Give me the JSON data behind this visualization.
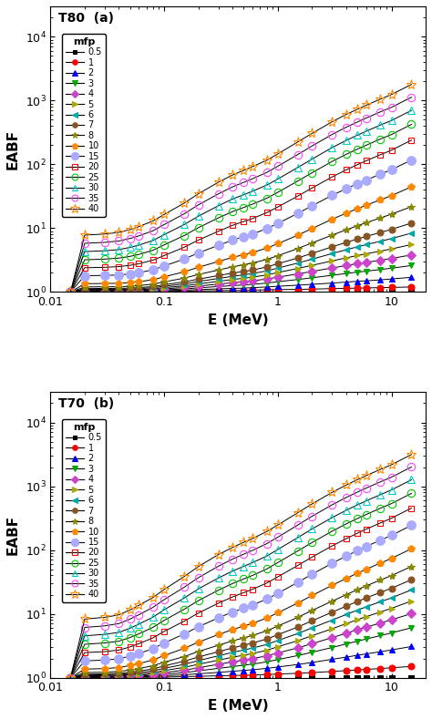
{
  "panels": [
    {
      "label": "T80",
      "panel_letter": "(a)"
    },
    {
      "label": "T70",
      "panel_letter": "(b)"
    }
  ],
  "xlabel": "E (MeV)",
  "ylabel": "EABF",
  "xlim": [
    0.01,
    20
  ],
  "ylim": [
    1,
    30000
  ],
  "x_energies": [
    0.015,
    0.02,
    0.03,
    0.04,
    0.05,
    0.06,
    0.08,
    0.1,
    0.15,
    0.2,
    0.3,
    0.4,
    0.5,
    0.6,
    0.8,
    1.0,
    1.5,
    2.0,
    3.0,
    4.0,
    5.0,
    6.0,
    8.0,
    10.0,
    15.0
  ],
  "series": [
    {
      "mfp": "0.5",
      "color": "#000000",
      "marker": "s",
      "markersize": 4,
      "markerfill": "full"
    },
    {
      "mfp": "1",
      "color": "#ff0000",
      "marker": "o",
      "markersize": 5,
      "markerfill": "full"
    },
    {
      "mfp": "2",
      "color": "#0000ff",
      "marker": "^",
      "markersize": 5,
      "markerfill": "full"
    },
    {
      "mfp": "3",
      "color": "#00aa00",
      "marker": "v",
      "markersize": 5,
      "markerfill": "full"
    },
    {
      "mfp": "4",
      "color": "#cc44cc",
      "marker": "D",
      "markersize": 5,
      "markerfill": "full"
    },
    {
      "mfp": "5",
      "color": "#aaaa00",
      "marker": ">",
      "markersize": 5,
      "markerfill": "full"
    },
    {
      "mfp": "6",
      "color": "#00aaaa",
      "marker": "<",
      "markersize": 5,
      "markerfill": "full"
    },
    {
      "mfp": "7",
      "color": "#885522",
      "marker": "o",
      "markersize": 5,
      "markerfill": "full"
    },
    {
      "mfp": "8",
      "color": "#888800",
      "marker": "*",
      "markersize": 6,
      "markerfill": "full"
    },
    {
      "mfp": "10",
      "color": "#ff8800",
      "marker": "p",
      "markersize": 6,
      "markerfill": "full"
    },
    {
      "mfp": "15",
      "color": "#aaaaff",
      "marker": "o",
      "markersize": 7,
      "markerfill": "full"
    },
    {
      "mfp": "20",
      "color": "#ff0000",
      "marker": "s",
      "markersize": 5,
      "markerfill": "none"
    },
    {
      "mfp": "25",
      "color": "#00cc00",
      "marker": "o",
      "markersize": 6,
      "markerfill": "none"
    },
    {
      "mfp": "30",
      "color": "#00cccc",
      "marker": "^",
      "markersize": 6,
      "markerfill": "none"
    },
    {
      "mfp": "35",
      "color": "#ff44ff",
      "marker": "o",
      "markersize": 6,
      "markerfill": "none"
    },
    {
      "mfp": "40",
      "color": "#ff8800",
      "marker": "*",
      "markersize": 8,
      "markerfill": "none"
    }
  ],
  "T80_data": [
    [
      1.0,
      1.0,
      1.0,
      1.0,
      1.0,
      1.0,
      1.0,
      1.0,
      1.0,
      1.0,
      1.0,
      1.0,
      1.0,
      1.0,
      1.0,
      1.0,
      1.0,
      1.0,
      1.0,
      1.0,
      1.0,
      1.0,
      1.0,
      1.0,
      1.0
    ],
    [
      1.0,
      1.01,
      1.01,
      1.01,
      1.01,
      1.01,
      1.01,
      1.02,
      1.03,
      1.04,
      1.05,
      1.06,
      1.06,
      1.07,
      1.08,
      1.09,
      1.1,
      1.11,
      1.13,
      1.14,
      1.15,
      1.16,
      1.17,
      1.18,
      1.2
    ],
    [
      1.0,
      1.02,
      1.02,
      1.02,
      1.02,
      1.02,
      1.03,
      1.05,
      1.07,
      1.09,
      1.12,
      1.14,
      1.15,
      1.17,
      1.2,
      1.23,
      1.28,
      1.32,
      1.38,
      1.43,
      1.47,
      1.5,
      1.55,
      1.6,
      1.7
    ],
    [
      1.0,
      1.03,
      1.03,
      1.03,
      1.03,
      1.04,
      1.05,
      1.08,
      1.12,
      1.16,
      1.22,
      1.26,
      1.29,
      1.32,
      1.38,
      1.45,
      1.57,
      1.67,
      1.83,
      1.95,
      2.05,
      2.12,
      2.25,
      2.36,
      2.6
    ],
    [
      1.0,
      1.05,
      1.05,
      1.05,
      1.05,
      1.06,
      1.08,
      1.12,
      1.18,
      1.24,
      1.33,
      1.4,
      1.45,
      1.5,
      1.6,
      1.71,
      1.92,
      2.1,
      2.38,
      2.6,
      2.78,
      2.92,
      3.15,
      3.35,
      3.82
    ],
    [
      1.0,
      1.07,
      1.07,
      1.07,
      1.08,
      1.09,
      1.12,
      1.17,
      1.25,
      1.34,
      1.47,
      1.57,
      1.64,
      1.71,
      1.85,
      2.02,
      2.34,
      2.62,
      3.07,
      3.43,
      3.73,
      3.97,
      4.38,
      4.73,
      5.55
    ],
    [
      1.0,
      1.1,
      1.1,
      1.1,
      1.11,
      1.13,
      1.17,
      1.23,
      1.34,
      1.46,
      1.63,
      1.76,
      1.86,
      1.95,
      2.14,
      2.37,
      2.84,
      3.27,
      4.0,
      4.59,
      5.1,
      5.53,
      6.24,
      6.88,
      8.37
    ],
    [
      1.0,
      1.13,
      1.14,
      1.14,
      1.15,
      1.17,
      1.22,
      1.3,
      1.44,
      1.59,
      1.81,
      1.98,
      2.1,
      2.21,
      2.47,
      2.77,
      3.42,
      4.03,
      5.1,
      5.99,
      6.76,
      7.44,
      8.57,
      9.61,
      12.0
    ],
    [
      1.0,
      1.2,
      1.21,
      1.21,
      1.23,
      1.26,
      1.33,
      1.44,
      1.65,
      1.88,
      2.21,
      2.48,
      2.67,
      2.85,
      3.24,
      3.71,
      4.8,
      5.87,
      7.79,
      9.44,
      10.9,
      12.2,
      14.5,
      16.6,
      21.8
    ],
    [
      1.0,
      1.35,
      1.36,
      1.37,
      1.4,
      1.45,
      1.56,
      1.73,
      2.07,
      2.44,
      3.01,
      3.49,
      3.84,
      4.17,
      4.88,
      5.72,
      7.78,
      9.88,
      13.8,
      17.2,
      20.2,
      22.9,
      27.9,
      32.4,
      44.6
    ],
    [
      1.0,
      1.8,
      1.82,
      1.85,
      1.92,
      2.01,
      2.23,
      2.56,
      3.28,
      4.1,
      5.38,
      6.51,
      7.34,
      8.12,
      9.84,
      11.9,
      17.1,
      22.4,
      32.7,
      41.7,
      49.7,
      56.9,
      70.5,
      82.7,
      117
    ],
    [
      1.0,
      2.4,
      2.44,
      2.5,
      2.62,
      2.78,
      3.16,
      3.73,
      5.02,
      6.51,
      8.95,
      11.1,
      12.7,
      14.2,
      17.5,
      21.5,
      31.9,
      42.6,
      63.5,
      82.2,
      98.7,
      114,
      142,
      167,
      240
    ],
    [
      1.0,
      3.2,
      3.28,
      3.4,
      3.62,
      3.88,
      4.52,
      5.48,
      7.66,
      10.2,
      14.5,
      18.2,
      21.1,
      23.8,
      29.5,
      36.5,
      54.9,
      73.9,
      111,
      144,
      173,
      200,
      250,
      294,
      424
    ],
    [
      1.0,
      4.3,
      4.43,
      4.62,
      5.0,
      5.43,
      6.44,
      7.92,
      11.4,
      15.4,
      22.5,
      28.7,
      33.4,
      38.0,
      47.4,
      59.0,
      89.5,
      121,
      183,
      238,
      286,
      331,
      414,
      487,
      702
    ],
    [
      1.0,
      5.8,
      6.0,
      6.3,
      6.9,
      7.58,
      9.14,
      11.4,
      16.8,
      23.2,
      34.5,
      44.5,
      52.2,
      59.7,
      74.8,
      93.5,
      143,
      194,
      294,
      383,
      460,
      533,
      666,
      784,
      1130
    ],
    [
      1.0,
      7.8,
      8.1,
      8.6,
      9.5,
      10.6,
      13.0,
      16.4,
      24.7,
      34.6,
      52.5,
      68.2,
      80.6,
      92.5,
      116,
      146,
      225,
      306,
      465,
      607,
      730,
      845,
      1056,
      1243,
      1793
    ]
  ],
  "T70_data": [
    [
      1.0,
      1.0,
      1.0,
      1.0,
      1.0,
      1.0,
      1.0,
      1.0,
      1.0,
      1.0,
      1.0,
      1.0,
      1.0,
      1.0,
      1.0,
      1.0,
      1.0,
      1.0,
      1.0,
      1.0,
      1.0,
      1.0,
      1.0,
      1.0,
      1.0
    ],
    [
      1.0,
      1.01,
      1.01,
      1.01,
      1.01,
      1.01,
      1.02,
      1.02,
      1.04,
      1.05,
      1.07,
      1.08,
      1.09,
      1.1,
      1.12,
      1.14,
      1.17,
      1.2,
      1.25,
      1.29,
      1.32,
      1.35,
      1.39,
      1.43,
      1.5
    ],
    [
      1.0,
      1.02,
      1.02,
      1.03,
      1.03,
      1.03,
      1.05,
      1.07,
      1.11,
      1.15,
      1.21,
      1.26,
      1.3,
      1.33,
      1.4,
      1.47,
      1.61,
      1.73,
      1.94,
      2.1,
      2.24,
      2.36,
      2.55,
      2.72,
      3.08
    ],
    [
      1.0,
      1.03,
      1.04,
      1.04,
      1.05,
      1.06,
      1.09,
      1.13,
      1.2,
      1.28,
      1.4,
      1.49,
      1.57,
      1.63,
      1.77,
      1.92,
      2.22,
      2.5,
      2.97,
      3.38,
      3.73,
      4.04,
      4.56,
      5.03,
      6.05
    ],
    [
      1.0,
      1.05,
      1.06,
      1.06,
      1.08,
      1.09,
      1.14,
      1.2,
      1.31,
      1.43,
      1.62,
      1.77,
      1.89,
      1.99,
      2.2,
      2.44,
      2.93,
      3.41,
      4.24,
      4.97,
      5.62,
      6.2,
      7.18,
      8.07,
      10.1
    ],
    [
      1.0,
      1.07,
      1.08,
      1.09,
      1.12,
      1.14,
      1.2,
      1.29,
      1.45,
      1.62,
      1.88,
      2.09,
      2.25,
      2.39,
      2.69,
      3.05,
      3.8,
      4.54,
      5.84,
      7.02,
      8.08,
      9.05,
      10.7,
      12.2,
      15.9
    ],
    [
      1.0,
      1.1,
      1.11,
      1.13,
      1.16,
      1.2,
      1.28,
      1.4,
      1.62,
      1.85,
      2.2,
      2.49,
      2.71,
      2.91,
      3.32,
      3.82,
      4.92,
      6.03,
      7.97,
      9.78,
      11.4,
      12.9,
      15.5,
      17.8,
      23.8
    ],
    [
      1.0,
      1.13,
      1.15,
      1.17,
      1.22,
      1.27,
      1.37,
      1.53,
      1.81,
      2.11,
      2.55,
      2.93,
      3.22,
      3.49,
      4.03,
      4.71,
      6.22,
      7.78,
      10.6,
      13.2,
      15.6,
      17.8,
      21.7,
      25.2,
      34.3
    ],
    [
      1.0,
      1.2,
      1.22,
      1.25,
      1.32,
      1.39,
      1.54,
      1.75,
      2.14,
      2.57,
      3.22,
      3.77,
      4.2,
      4.6,
      5.42,
      6.44,
      8.82,
      11.3,
      15.8,
      20.0,
      23.9,
      27.5,
      33.9,
      39.8,
      55.4
    ],
    [
      1.0,
      1.36,
      1.39,
      1.44,
      1.55,
      1.66,
      1.9,
      2.22,
      2.88,
      3.6,
      4.74,
      5.68,
      6.43,
      7.12,
      8.58,
      10.4,
      14.8,
      19.4,
      28.0,
      35.9,
      43.3,
      50.1,
      62.5,
      73.9,
      105
    ],
    [
      1.0,
      1.83,
      1.89,
      1.97,
      2.17,
      2.39,
      2.86,
      3.5,
      4.83,
      6.27,
      8.66,
      10.7,
      12.3,
      13.8,
      17.0,
      21.0,
      31.2,
      41.8,
      62.0,
      80.6,
      97.8,
      114,
      143,
      170,
      244
    ],
    [
      1.0,
      2.47,
      2.56,
      2.71,
      3.03,
      3.41,
      4.22,
      5.31,
      7.67,
      10.3,
      14.7,
      18.4,
      21.5,
      24.3,
      30.4,
      38.0,
      57.4,
      77.6,
      116,
      151,
      183,
      213,
      266,
      315,
      455
    ],
    [
      1.0,
      3.34,
      3.5,
      3.73,
      4.25,
      4.87,
      6.17,
      7.9,
      11.8,
      16.1,
      23.5,
      29.9,
      35.2,
      40.1,
      50.5,
      63.6,
      96.9,
      131,
      197,
      257,
      311,
      361,
      452,
      535,
      773
    ],
    [
      1.0,
      4.53,
      4.77,
      5.13,
      5.95,
      6.91,
      8.92,
      11.6,
      17.7,
      24.6,
      36.5,
      46.8,
      55.5,
      63.6,
      80.7,
      102,
      157,
      214,
      322,
      420,
      509,
      591,
      739,
      875,
      1264
    ],
    [
      1.0,
      6.13,
      6.49,
      7.04,
      8.27,
      9.69,
      12.7,
      16.7,
      26.1,
      36.9,
      55.8,
      72.2,
      86.0,
      98.9,
      126,
      159,
      247,
      338,
      511,
      667,
      808,
      937,
      1173,
      1388,
      2005
    ],
    [
      1.0,
      8.29,
      8.82,
      9.65,
      11.5,
      13.6,
      18.1,
      24.1,
      38.4,
      55.2,
      84.8,
      110,
      132,
      152,
      195,
      247,
      385,
      528,
      800,
      1045,
      1266,
      1469,
      1838,
      2174,
      3140
    ]
  ]
}
